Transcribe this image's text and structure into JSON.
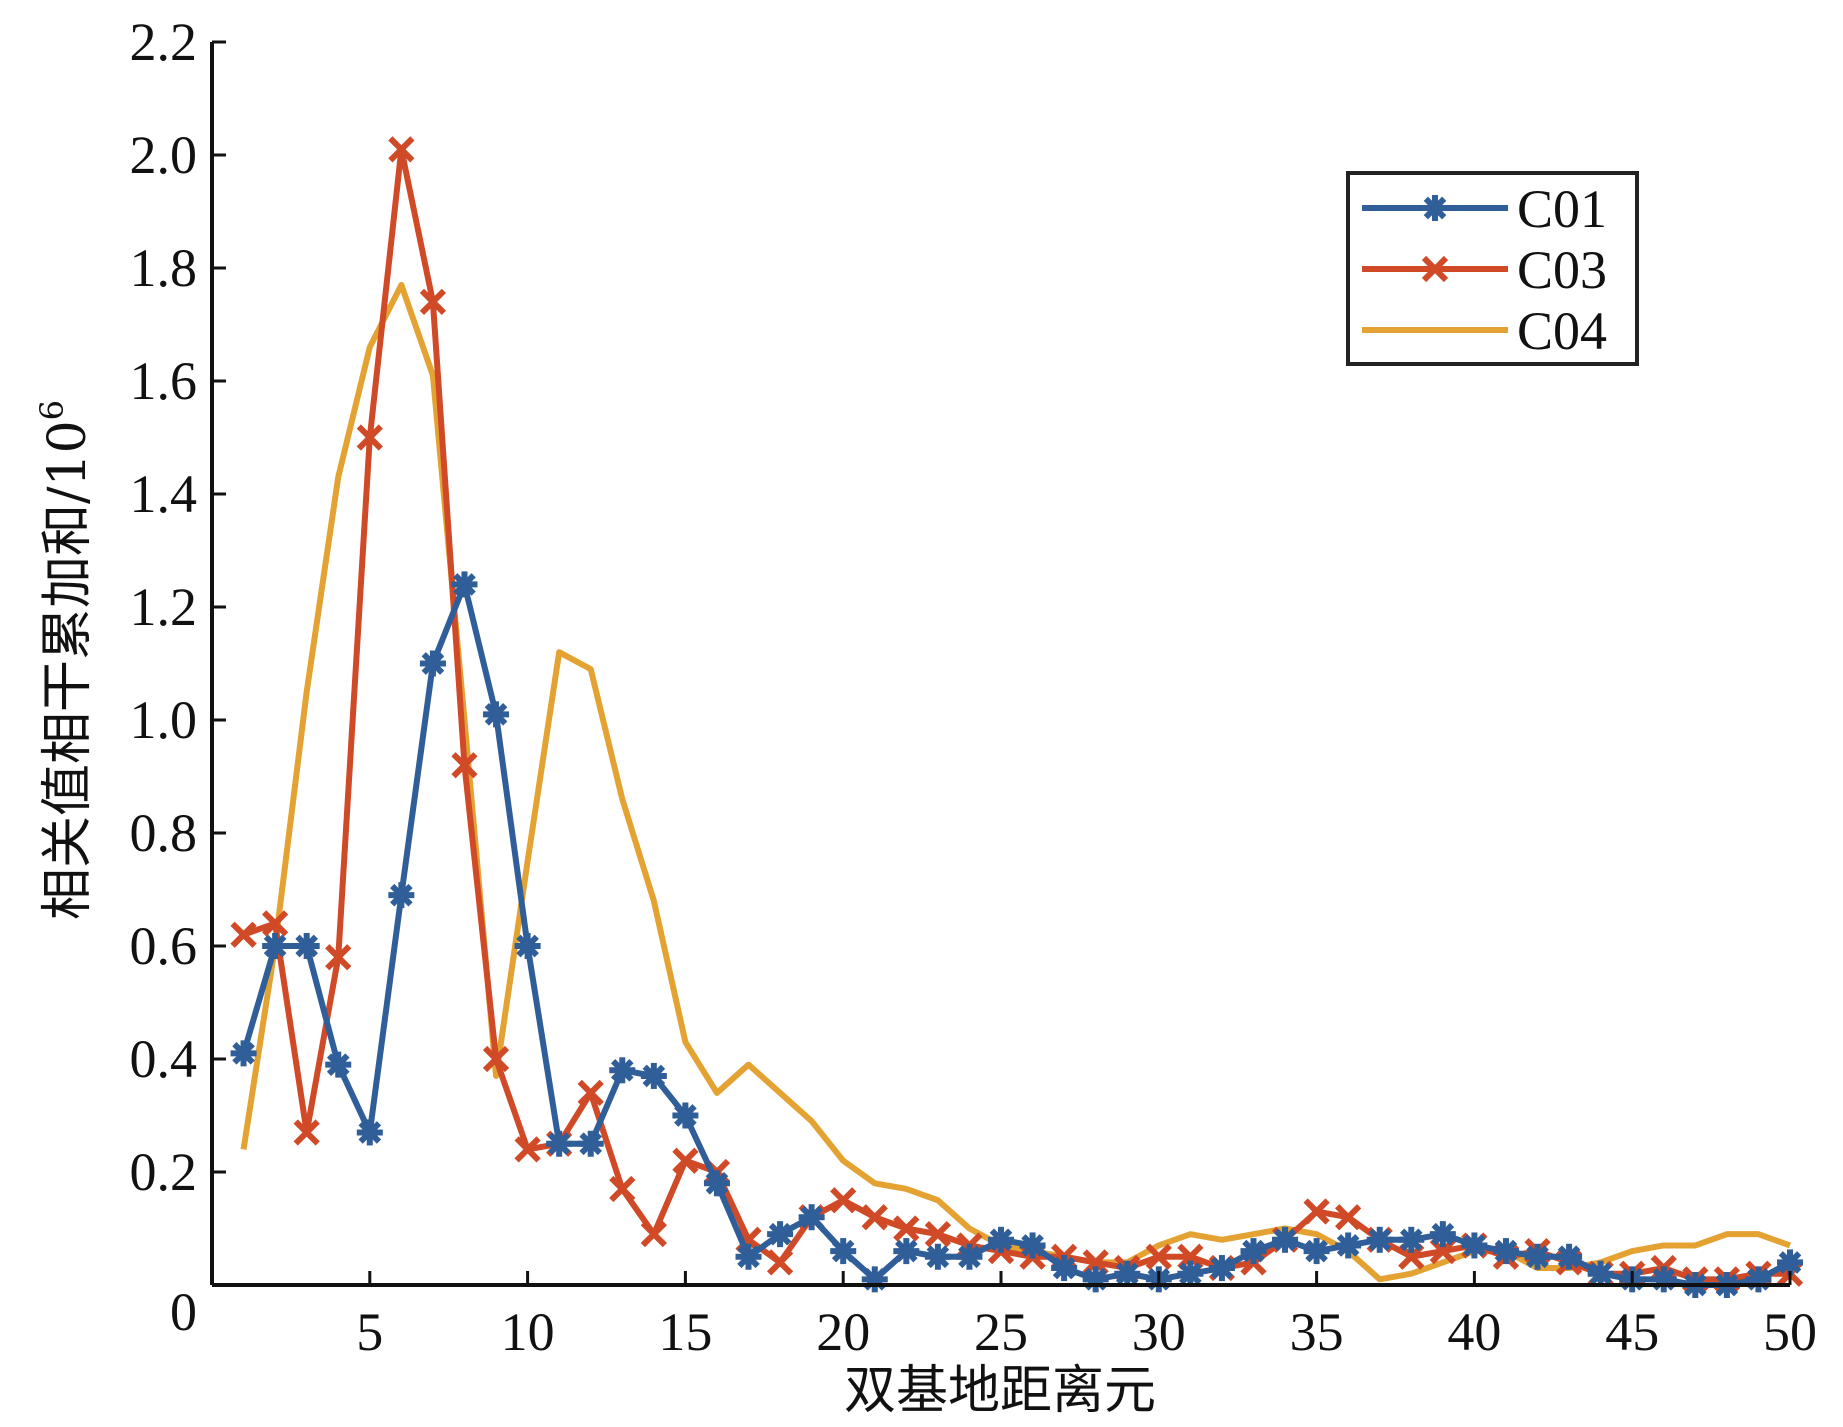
{
  "chart_data": {
    "type": "line",
    "title": "",
    "xlabel": "双基地距离元",
    "ylabel": "相关值相干累加和/10",
    "ylabel_superscript": "6",
    "xlim": [
      0,
      50
    ],
    "ylim": [
      0,
      2.2
    ],
    "origin_label": "0",
    "xticks": [
      5,
      10,
      15,
      20,
      25,
      30,
      35,
      40,
      45,
      50
    ],
    "xtick_labels": [
      "5",
      "10",
      "15",
      "20",
      "25",
      "30",
      "35",
      "40",
      "45",
      "50"
    ],
    "yticks": [
      0.2,
      0.4,
      0.6,
      0.8,
      1.0,
      1.2,
      1.4,
      1.6,
      1.8,
      2.0,
      2.2
    ],
    "ytick_labels": [
      "0.2",
      "0.4",
      "0.6",
      "0.8",
      "1.0",
      "1.2",
      "1.4",
      "1.6",
      "1.8",
      "2.0",
      "2.2"
    ],
    "grid": false,
    "legend_position": "top-right",
    "x": [
      1,
      2,
      3,
      4,
      5,
      6,
      7,
      8,
      9,
      10,
      11,
      12,
      13,
      14,
      15,
      16,
      17,
      18,
      19,
      20,
      21,
      22,
      23,
      24,
      25,
      26,
      27,
      28,
      29,
      30,
      31,
      32,
      33,
      34,
      35,
      36,
      37,
      38,
      39,
      40,
      41,
      42,
      43,
      44,
      45,
      46,
      47,
      48,
      49,
      50
    ],
    "series": [
      {
        "name": "C01",
        "color": "#2F5E98",
        "marker": "asterisk",
        "values": [
          0.41,
          0.6,
          0.6,
          0.39,
          0.27,
          0.69,
          1.1,
          1.24,
          1.01,
          0.6,
          0.25,
          0.25,
          0.38,
          0.37,
          0.3,
          0.18,
          0.05,
          0.09,
          0.12,
          0.06,
          0.01,
          0.06,
          0.05,
          0.05,
          0.08,
          0.07,
          0.03,
          0.01,
          0.02,
          0.01,
          0.02,
          0.03,
          0.06,
          0.08,
          0.06,
          0.07,
          0.08,
          0.08,
          0.09,
          0.07,
          0.06,
          0.05,
          0.05,
          0.02,
          0.01,
          0.01,
          0.0,
          0.0,
          0.01,
          0.04
        ]
      },
      {
        "name": "C03",
        "color": "#D04A27",
        "marker": "x",
        "values": [
          0.62,
          0.64,
          0.27,
          0.58,
          1.5,
          2.01,
          1.74,
          0.92,
          0.4,
          0.24,
          0.25,
          0.34,
          0.17,
          0.09,
          0.22,
          0.2,
          0.08,
          0.04,
          0.12,
          0.15,
          0.12,
          0.1,
          0.09,
          0.07,
          0.06,
          0.05,
          0.05,
          0.04,
          0.03,
          0.05,
          0.05,
          0.03,
          0.04,
          0.08,
          0.13,
          0.12,
          0.08,
          0.05,
          0.06,
          0.07,
          0.05,
          0.06,
          0.04,
          0.02,
          0.02,
          0.03,
          0.01,
          0.01,
          0.02,
          0.02
        ]
      },
      {
        "name": "C04",
        "color": "#E3A232",
        "marker": "none",
        "values": [
          0.24,
          0.6,
          1.05,
          1.43,
          1.66,
          1.77,
          1.61,
          1.0,
          0.37,
          0.75,
          1.12,
          1.09,
          0.86,
          0.68,
          0.43,
          0.34,
          0.39,
          0.34,
          0.29,
          0.22,
          0.18,
          0.17,
          0.15,
          0.1,
          0.07,
          0.06,
          0.05,
          0.04,
          0.04,
          0.07,
          0.09,
          0.08,
          0.09,
          0.1,
          0.09,
          0.06,
          0.01,
          0.02,
          0.04,
          0.06,
          0.06,
          0.03,
          0.03,
          0.04,
          0.06,
          0.07,
          0.07,
          0.09,
          0.09,
          0.07
        ]
      }
    ]
  }
}
